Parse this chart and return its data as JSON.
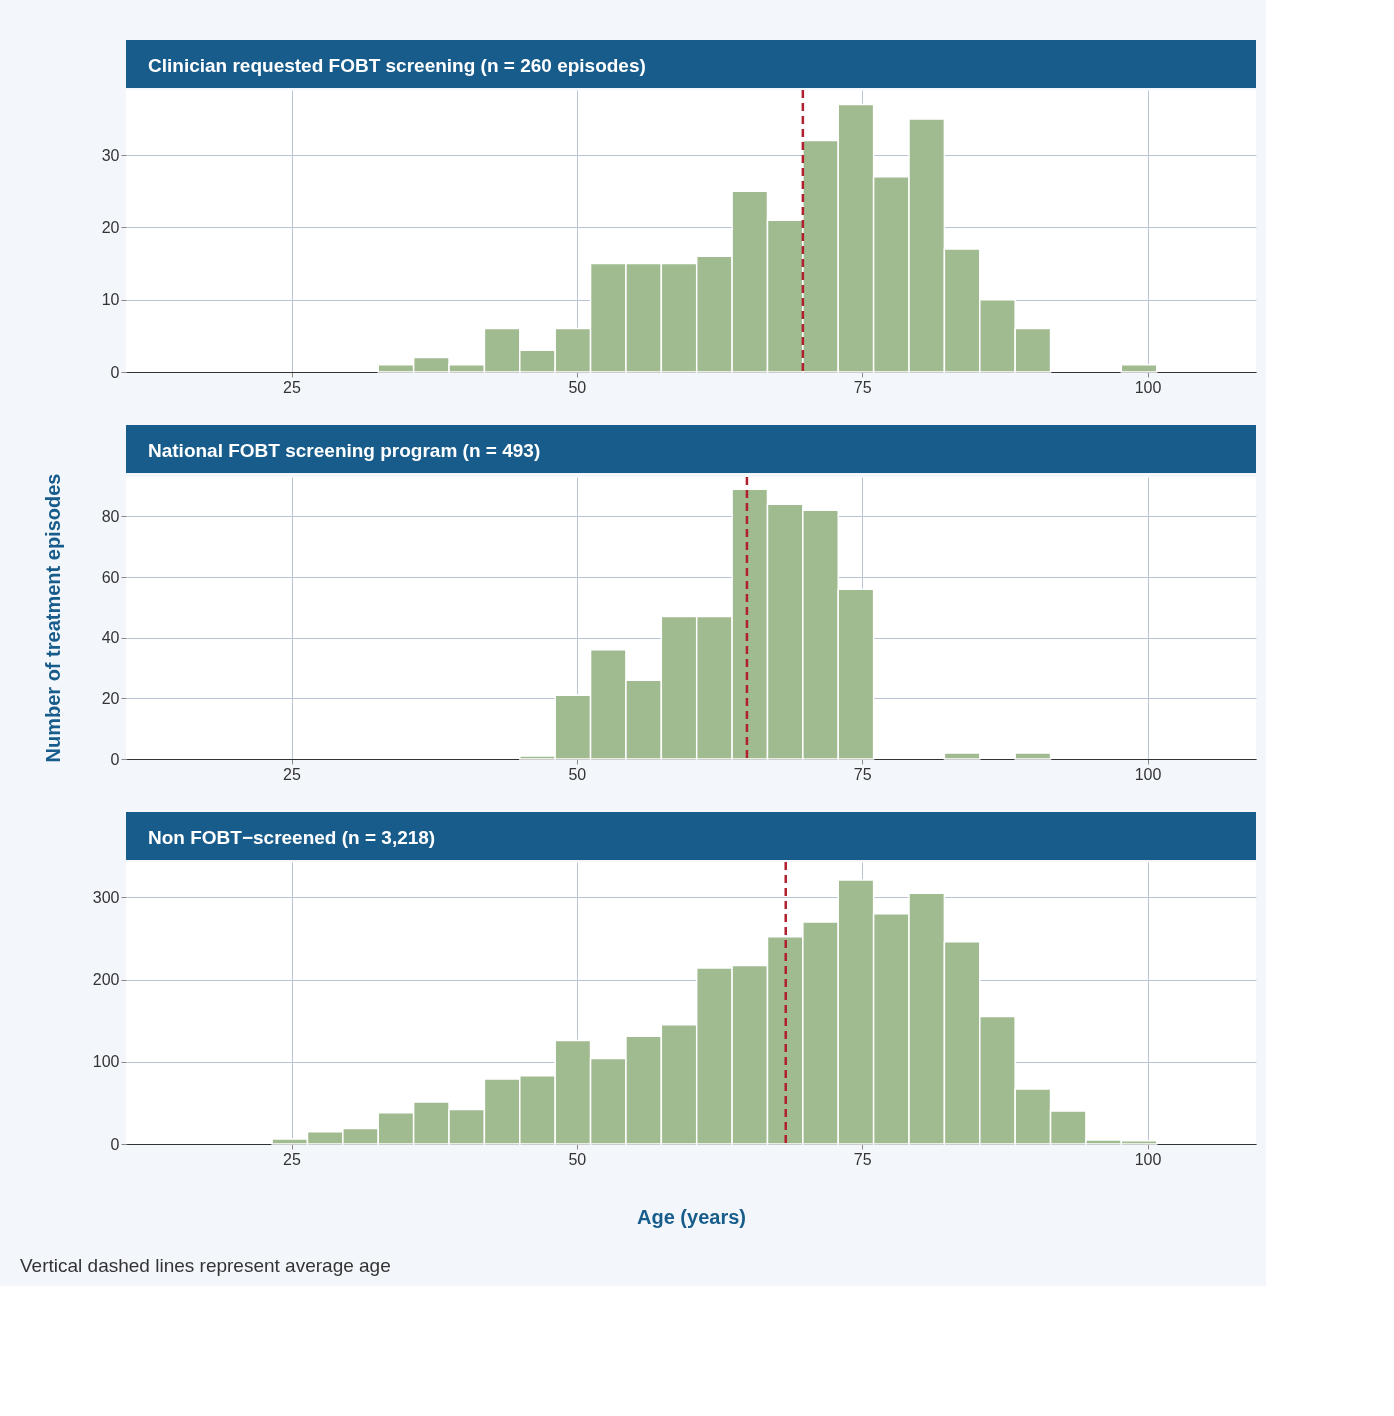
{
  "chart_data": [
    {
      "type": "histogram",
      "title": "Clinician requested FOBT screening (n = 260 episodes)",
      "color": "#a0bb8f",
      "bins": [
        32.6,
        35.7,
        38.8,
        41.9,
        45.0,
        48.1,
        51.2,
        54.3,
        57.4,
        60.5,
        63.6,
        66.7,
        69.8,
        72.9,
        76.0,
        79.1,
        82.2,
        85.3,
        88.4,
        91.5,
        94.6,
        97.7,
        100.8
      ],
      "values": [
        1,
        2,
        1,
        6,
        3,
        6,
        15,
        15,
        15,
        16,
        25,
        21,
        32,
        37,
        27,
        35,
        17,
        10,
        6,
        0,
        0,
        1
      ],
      "xlim": [
        10.5,
        109.5
      ],
      "xticks": [
        25,
        50,
        75,
        100
      ],
      "ylim": [
        0,
        39
      ],
      "yticks": [
        0,
        10,
        20,
        30
      ],
      "grid": true,
      "ref_lines": [
        {
          "axis": "x",
          "value": 69.8,
          "color": "#b0202e",
          "line_style": "dashed"
        }
      ]
    },
    {
      "type": "histogram",
      "title": "National FOBT screening program (n = 493)",
      "color": "#a0bb8f",
      "ylabel": "Number of treatment episodes",
      "bins": [
        45.0,
        48.1,
        51.2,
        54.3,
        57.4,
        60.5,
        63.6,
        66.7,
        69.8,
        72.9,
        76.0,
        79.1,
        82.2,
        85.3,
        88.4,
        91.5
      ],
      "values": [
        1,
        21,
        36,
        26,
        47,
        47,
        89,
        84,
        82,
        56,
        0,
        0,
        2,
        0,
        2
      ],
      "xlim": [
        10.5,
        109.5
      ],
      "xticks": [
        25,
        50,
        75,
        100
      ],
      "ylim": [
        0,
        93
      ],
      "yticks": [
        0,
        20,
        40,
        60,
        80
      ],
      "grid": true,
      "ref_lines": [
        {
          "axis": "x",
          "value": 64.9,
          "color": "#b0202e",
          "line_style": "dashed"
        }
      ]
    },
    {
      "type": "histogram",
      "title": "Non FOBT−screened (n = 3,218)",
      "color": "#a0bb8f",
      "xlabel": "Age (years)",
      "bins": [
        23.3,
        26.4,
        29.5,
        32.6,
        35.7,
        38.8,
        41.9,
        45.0,
        48.1,
        51.2,
        54.3,
        57.4,
        60.5,
        63.6,
        66.7,
        69.8,
        72.9,
        76.0,
        79.1,
        82.2,
        85.3,
        88.4,
        91.5,
        94.6,
        97.7,
        100.8
      ],
      "values": [
        6,
        15,
        19,
        38,
        51,
        42,
        79,
        83,
        126,
        104,
        131,
        145,
        214,
        217,
        252,
        270,
        321,
        280,
        305,
        246,
        155,
        67,
        40,
        5,
        4
      ],
      "xlim": [
        10.5,
        109.5
      ],
      "xticks": [
        25,
        50,
        75,
        100
      ],
      "ylim": [
        0,
        343
      ],
      "yticks": [
        0,
        100,
        200,
        300
      ],
      "grid": true,
      "ref_lines": [
        {
          "axis": "x",
          "value": 68.3,
          "color": "#b0202e",
          "line_style": "dashed"
        }
      ],
      "annotations": [
        "Vertical dashed lines represent average age"
      ]
    }
  ]
}
